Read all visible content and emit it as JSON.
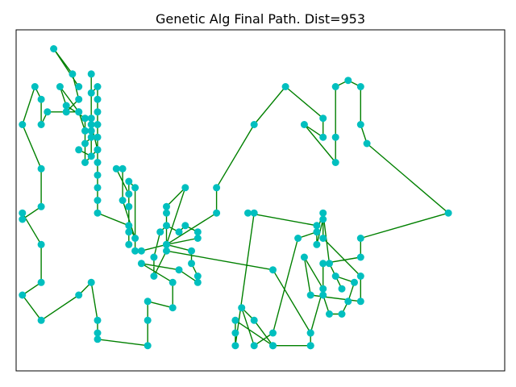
{
  "chart_data": {
    "type": "line",
    "title": "Genetic Alg Final Path. Dist=953",
    "xlabel": "",
    "ylabel": "",
    "axis": "off",
    "grid": false,
    "xlim": [
      -1,
      77
    ],
    "ylim": [
      -1,
      53
    ],
    "line_color": "#008000",
    "marker_color": "#00bfbf",
    "path": [
      [
        9,
        8
      ],
      [
        5,
        2
      ],
      [
        8,
        6
      ],
      [
        9,
        10
      ],
      [
        7,
        12
      ],
      [
        9,
        12
      ],
      [
        7,
        12
      ],
      [
        4,
        12
      ],
      [
        3,
        14
      ],
      [
        3,
        10
      ],
      [
        2,
        8
      ],
      [
        0,
        14
      ],
      [
        3,
        21
      ],
      [
        3,
        27
      ],
      [
        0,
        29
      ],
      [
        0,
        28
      ],
      [
        3,
        33
      ],
      [
        3,
        39
      ],
      [
        0,
        41
      ],
      [
        3,
        45
      ],
      [
        9,
        41
      ],
      [
        11,
        39
      ],
      [
        12,
        45
      ],
      [
        12,
        47
      ],
      [
        12,
        48
      ],
      [
        20,
        49
      ],
      [
        20,
        45
      ],
      [
        20,
        42
      ],
      [
        24,
        43
      ],
      [
        24,
        39
      ],
      [
        19,
        36
      ],
      [
        25,
        37
      ],
      [
        28,
        39
      ],
      [
        28,
        38
      ],
      [
        27,
        36
      ],
      [
        27,
        34
      ],
      [
        23,
        33
      ],
      [
        31,
        28
      ],
      [
        31,
        24
      ],
      [
        37,
        14
      ],
      [
        42,
        8
      ],
      [
        48,
        13
      ],
      [
        48,
        16
      ],
      [
        45,
        14
      ],
      [
        50,
        20
      ],
      [
        50,
        16
      ],
      [
        50,
        8
      ],
      [
        52,
        7
      ],
      [
        54,
        8
      ],
      [
        54,
        14
      ],
      [
        55,
        17
      ],
      [
        68,
        28
      ],
      [
        54,
        32
      ],
      [
        54,
        35
      ],
      [
        48,
        36
      ],
      [
        48,
        41
      ],
      [
        49,
        44
      ],
      [
        51,
        44
      ],
      [
        52,
        42
      ],
      [
        53,
        39
      ],
      [
        50,
        38
      ],
      [
        51,
        40
      ],
      [
        49,
        36
      ],
      [
        48,
        28
      ],
      [
        47,
        31
      ],
      [
        44,
        32
      ],
      [
        40,
        47
      ],
      [
        37,
        49
      ],
      [
        35,
        43
      ],
      [
        37,
        45
      ],
      [
        40,
        49
      ],
      [
        46,
        49
      ],
      [
        46,
        47
      ],
      [
        48,
        40
      ],
      [
        45,
        35
      ],
      [
        46,
        41
      ],
      [
        54,
        42
      ],
      [
        54,
        38
      ],
      [
        48,
        32
      ],
      [
        48,
        29
      ],
      [
        47,
        33
      ],
      [
        47,
        30
      ],
      [
        36,
        28
      ],
      [
        37,
        28
      ],
      [
        34,
        49
      ],
      [
        34,
        47
      ],
      [
        34,
        45
      ],
      [
        40,
        49
      ],
      [
        46,
        49
      ],
      [
        46,
        47
      ],
      [
        40,
        37
      ],
      [
        23,
        34
      ],
      [
        21,
        38
      ],
      [
        21,
        35
      ],
      [
        22,
        31
      ],
      [
        23,
        30
      ],
      [
        25,
        31
      ],
      [
        26,
        30
      ],
      [
        28,
        31
      ],
      [
        28,
        32
      ],
      [
        23,
        33
      ],
      [
        26,
        24
      ],
      [
        23,
        27
      ],
      [
        23,
        28
      ],
      [
        23,
        33
      ],
      [
        19,
        34
      ],
      [
        18,
        34
      ],
      [
        18,
        24
      ],
      [
        17,
        23
      ],
      [
        17,
        31
      ],
      [
        17,
        27
      ],
      [
        17,
        33
      ],
      [
        17,
        25
      ],
      [
        15,
        21
      ],
      [
        16,
        21
      ],
      [
        16,
        26
      ],
      [
        18,
        32
      ],
      [
        17,
        30
      ],
      [
        12,
        28
      ],
      [
        12,
        26
      ],
      [
        12,
        24
      ],
      [
        12,
        22
      ],
      [
        12,
        20
      ],
      [
        12,
        18
      ],
      [
        12,
        16
      ],
      [
        12,
        14
      ],
      [
        12,
        12
      ],
      [
        12,
        10
      ],
      [
        12,
        8
      ],
      [
        11,
        9
      ],
      [
        11,
        6
      ],
      [
        11,
        13
      ],
      [
        11,
        15
      ],
      [
        11,
        16
      ],
      [
        10,
        17
      ],
      [
        10,
        13
      ],
      [
        7,
        11
      ],
      [
        6,
        8
      ],
      [
        9,
        12
      ],
      [
        10,
        15
      ],
      [
        10,
        20
      ],
      [
        12,
        18
      ],
      [
        11,
        14
      ],
      [
        11,
        19
      ],
      [
        9,
        18
      ]
    ]
  }
}
